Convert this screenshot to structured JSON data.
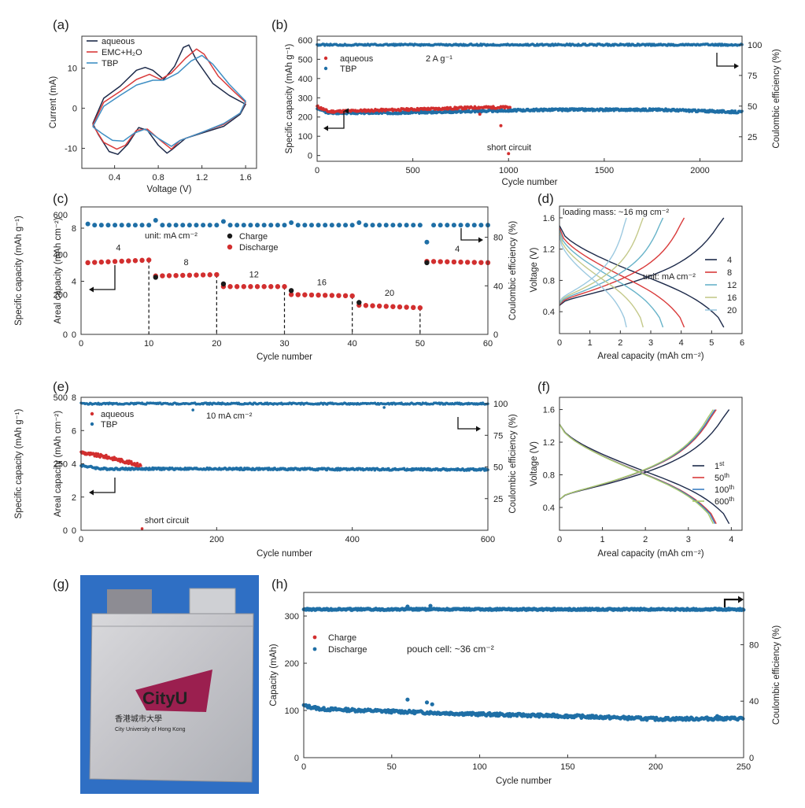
{
  "panel_labels": [
    "(a)",
    "(b)",
    "(c)",
    "(d)",
    "(e)",
    "(f)",
    "(g)",
    "(h)"
  ],
  "colors": {
    "aqueous": "#1d2a4a",
    "emc": "#d93a3a",
    "tbp": "#3f8fc4",
    "blue_dot": "#1f6fa6",
    "red_dot": "#d22f2f",
    "black_dot": "#1a1a1a",
    "d12": "#67b3c9",
    "d16": "#c4c98a",
    "d20": "#9cc9e0",
    "f100": "#3b7fc1",
    "f600": "#a8c76a",
    "pouch_bg": "#2f6fc4",
    "brand": "#9b1f4f"
  },
  "text": {
    "pouch": {
      "logo": "CityU",
      "chinese": "香港城市大學",
      "english": "City University of Hong Kong"
    }
  },
  "chart_data": [
    {
      "panel": "(a)",
      "type": "line",
      "xlabel": "Voltage (V)",
      "ylabel": "Current (mA)",
      "xlim": [
        0.1,
        1.7
      ],
      "ylim": [
        -15,
        18
      ],
      "xticks": [
        0.4,
        0.8,
        1.2,
        1.6
      ],
      "yticks": [
        -10,
        0,
        10
      ],
      "series": [
        {
          "name": "aqueous",
          "color_key": "aqueous",
          "points": [
            [
              0.2,
              -3.8
            ],
            [
              0.3,
              2.5
            ],
            [
              0.45,
              5.5
            ],
            [
              0.6,
              9.5
            ],
            [
              0.68,
              10.2
            ],
            [
              0.75,
              9.5
            ],
            [
              0.85,
              7.2
            ],
            [
              0.95,
              10.5
            ],
            [
              1.03,
              15.2
            ],
            [
              1.08,
              15.8
            ],
            [
              1.15,
              12
            ],
            [
              1.3,
              6.2
            ],
            [
              1.45,
              3.2
            ],
            [
              1.6,
              1.0
            ],
            [
              1.55,
              -1.5
            ],
            [
              1.4,
              -4.5
            ],
            [
              1.2,
              -6.2
            ],
            [
              1.05,
              -7.5
            ],
            [
              0.93,
              -10.2
            ],
            [
              0.88,
              -11.2
            ],
            [
              0.8,
              -9.2
            ],
            [
              0.7,
              -5.5
            ],
            [
              0.62,
              -4.8
            ],
            [
              0.52,
              -9
            ],
            [
              0.43,
              -11.5
            ],
            [
              0.35,
              -10.8
            ],
            [
              0.25,
              -6.5
            ],
            [
              0.2,
              -3.8
            ]
          ]
        },
        {
          "name": "EMC+H₂O",
          "color_key": "emc",
          "points": [
            [
              0.2,
              -4.2
            ],
            [
              0.3,
              1.5
            ],
            [
              0.45,
              4.2
            ],
            [
              0.6,
              7.2
            ],
            [
              0.72,
              8.5
            ],
            [
              0.82,
              7.2
            ],
            [
              0.92,
              8.8
            ],
            [
              1.05,
              12.5
            ],
            [
              1.15,
              14.8
            ],
            [
              1.22,
              13.5
            ],
            [
              1.35,
              8
            ],
            [
              1.5,
              4
            ],
            [
              1.6,
              1.5
            ],
            [
              1.55,
              -1.2
            ],
            [
              1.4,
              -4
            ],
            [
              1.2,
              -6
            ],
            [
              1.0,
              -8
            ],
            [
              0.92,
              -10.2
            ],
            [
              0.82,
              -8
            ],
            [
              0.7,
              -5.2
            ],
            [
              0.6,
              -5.5
            ],
            [
              0.5,
              -9.2
            ],
            [
              0.42,
              -10.2
            ],
            [
              0.3,
              -8.5
            ],
            [
              0.2,
              -4.2
            ]
          ]
        },
        {
          "name": "TBP",
          "color_key": "tbp",
          "points": [
            [
              0.2,
              -4.6
            ],
            [
              0.3,
              0.5
            ],
            [
              0.45,
              3.2
            ],
            [
              0.6,
              5.8
            ],
            [
              0.75,
              7
            ],
            [
              0.85,
              7
            ],
            [
              0.98,
              8.8
            ],
            [
              1.1,
              11.8
            ],
            [
              1.2,
              13.2
            ],
            [
              1.3,
              11
            ],
            [
              1.45,
              6
            ],
            [
              1.6,
              1.8
            ],
            [
              1.55,
              -1.2
            ],
            [
              1.4,
              -3.8
            ],
            [
              1.2,
              -6
            ],
            [
              1.0,
              -8
            ],
            [
              0.92,
              -9.5
            ],
            [
              0.8,
              -7.5
            ],
            [
              0.68,
              -5.2
            ],
            [
              0.58,
              -6.2
            ],
            [
              0.48,
              -8.2
            ],
            [
              0.38,
              -8
            ],
            [
              0.28,
              -6.2
            ],
            [
              0.2,
              -4.6
            ]
          ]
        }
      ]
    },
    {
      "panel": "(b)",
      "type": "scatter",
      "xlabel": "Cycle number",
      "ylabel": "Specific capacity (mAh g⁻¹)",
      "y2label": "Coulombic efficiency (%)",
      "xlim": [
        0,
        2220
      ],
      "ylim": [
        -30,
        620
      ],
      "y2lim": [
        5,
        107
      ],
      "xticks": [
        0,
        500,
        1000,
        1500,
        2000
      ],
      "yticks": [
        0,
        100,
        200,
        300,
        400,
        500,
        600
      ],
      "y2ticks": [
        25,
        50,
        75,
        100
      ],
      "rate_label": "2 A g⁻¹",
      "annotation": "short circuit",
      "series": [
        {
          "name": "aqueous",
          "axis": "left",
          "color_key": "red_dot",
          "segments": [
            [
              0,
              255
            ],
            [
              60,
              228
            ],
            [
              200,
              232
            ],
            [
              500,
              240
            ],
            [
              700,
              245
            ],
            [
              850,
              250
            ],
            [
              1010,
              250
            ]
          ],
          "outliers": [
            [
              850,
              215
            ],
            [
              960,
              155
            ],
            [
              1000,
              10
            ]
          ]
        },
        {
          "name": "TBP",
          "axis": "left",
          "color_key": "blue_dot",
          "segments": [
            [
              0,
              245
            ],
            [
              60,
              222
            ],
            [
              400,
              222
            ],
            [
              800,
              230
            ],
            [
              1200,
              238
            ],
            [
              1800,
              238
            ],
            [
              2220,
              225
            ]
          ]
        },
        {
          "name": "aqueous",
          "axis": "right",
          "ce": 100,
          "range": [
            0,
            1010
          ],
          "color_key": "red_dot"
        },
        {
          "name": "TBP",
          "axis": "right",
          "ce": 100,
          "range": [
            0,
            2220
          ],
          "color_key": "blue_dot"
        }
      ]
    },
    {
      "panel": "(c)",
      "type": "scatter",
      "xlabel": "Cycle number",
      "ylabel_outer": "Specific capacity (mAh g⁻¹)",
      "ylabel_inner": "Areal capacity (mAh cm⁻²)",
      "y2label": "Coulombic efficiency (%)",
      "xlim": [
        0,
        60
      ],
      "ylim": [
        0,
        9.6
      ],
      "y2lim": [
        0,
        105
      ],
      "xticks": [
        0,
        10,
        20,
        30,
        40,
        50,
        60
      ],
      "yticks": [
        0,
        4,
        8
      ],
      "y2ticks": [
        0,
        40,
        80
      ],
      "outer_ticks": [
        0,
        200,
        400,
        600
      ],
      "unit_label": "unit: mA cm⁻²",
      "series": [
        {
          "name": "Charge",
          "color_key": "black_dot",
          "values": [
            [
              11,
              4.3
            ],
            [
              21,
              3.8
            ],
            [
              31,
              3.3
            ],
            [
              41,
              2.4
            ],
            [
              51,
              5.4
            ]
          ]
        },
        {
          "name": "Discharge",
          "color_key": "red_dot",
          "blocks": [
            {
              "rate": "4",
              "x": [
                1,
                10
              ],
              "y": [
                5.4,
                5.6
              ]
            },
            {
              "rate": "8",
              "x": [
                11,
                20
              ],
              "y": [
                4.4,
                4.5
              ]
            },
            {
              "rate": "12",
              "x": [
                21,
                30
              ],
              "y": [
                3.6,
                3.6
              ]
            },
            {
              "rate": "16",
              "x": [
                31,
                40
              ],
              "y": [
                3.0,
                2.9
              ]
            },
            {
              "rate": "20",
              "x": [
                41,
                50
              ],
              "y": [
                2.2,
                2.0
              ]
            },
            {
              "rate": "4",
              "x": [
                51,
                60
              ],
              "y": [
                5.5,
                5.4
              ]
            }
          ]
        },
        {
          "name": "CE",
          "axis": "right",
          "color_key": "blue_dot",
          "values": [
            [
              1,
              91
            ],
            [
              11,
              94
            ],
            [
              21,
              93
            ],
            [
              31,
              92
            ],
            [
              41,
              92
            ],
            [
              51,
              76
            ]
          ],
          "base": 90
        }
      ],
      "dividers": [
        10,
        20,
        30,
        40,
        50
      ]
    },
    {
      "panel": "(d)",
      "type": "line",
      "xlabel": "Areal capacity (mAh cm⁻²)",
      "ylabel": "Voltage (V)",
      "xlim": [
        0,
        6
      ],
      "ylim": [
        0.12,
        1.75
      ],
      "xticks": [
        0,
        1,
        2,
        3,
        4,
        5,
        6
      ],
      "yticks": [
        0.4,
        0.8,
        1.2,
        1.6
      ],
      "note": "loading mass: ~16 mg cm⁻²",
      "unit_label": "unit: mA cm⁻²",
      "series": [
        {
          "name": "4",
          "color_key": "aqueous",
          "cmax": 5.4
        },
        {
          "name": "8",
          "color_key": "emc",
          "cmax": 4.1
        },
        {
          "name": "12",
          "color_key": "d12",
          "cmax": 3.4
        },
        {
          "name": "16",
          "color_key": "d16",
          "cmax": 2.75
        },
        {
          "name": "20",
          "color_key": "d20",
          "cmax": 2.2
        }
      ]
    },
    {
      "panel": "(e)",
      "type": "scatter",
      "xlabel": "Cycle number",
      "ylabel_outer": "Specific capacity (mAh g⁻¹)",
      "ylabel_inner": "Areal capacity (mAh cm⁻²)",
      "y2label": "Coulombic efficiency (%)",
      "xlim": [
        0,
        600
      ],
      "ylim": [
        0,
        8
      ],
      "y2lim": [
        0,
        105
      ],
      "xticks": [
        0,
        200,
        400,
        600
      ],
      "yticks": [
        0,
        2,
        4,
        6,
        8
      ],
      "y2ticks": [
        25,
        50,
        75,
        100
      ],
      "outer_ticks": [
        0,
        250,
        500
      ],
      "rate_label": "10 mA cm⁻²",
      "annotation": "short circuit",
      "series": [
        {
          "name": "aqueous",
          "color_key": "red_dot",
          "segments": [
            [
              0,
              4.7
            ],
            [
              10,
              4.6
            ],
            [
              40,
              4.4
            ],
            [
              88,
              3.9
            ]
          ],
          "outliers": [
            [
              90,
              0.1
            ]
          ]
        },
        {
          "name": "TBP",
          "color_key": "blue_dot",
          "segments": [
            [
              0,
              3.9
            ],
            [
              30,
              3.7
            ],
            [
              150,
              3.7
            ],
            [
              600,
              3.65
            ]
          ]
        },
        {
          "name": "CE",
          "axis": "right",
          "ce": 100,
          "color_key": "blue_dot",
          "outliers": [
            [
              165,
              95
            ],
            [
              447,
              97
            ]
          ]
        }
      ]
    },
    {
      "panel": "(f)",
      "type": "line",
      "xlabel": "Areal capacity (mAh cm⁻²)",
      "ylabel": "Voltage (V)",
      "xlim": [
        0,
        4.25
      ],
      "ylim": [
        0.12,
        1.75
      ],
      "xticks": [
        0,
        1,
        2,
        3,
        4
      ],
      "yticks": [
        0.4,
        0.8,
        1.2,
        1.6
      ],
      "series": [
        {
          "name": "1st",
          "label_base": "1",
          "label_sup": "st",
          "color_key": "aqueous",
          "cmax": 3.95
        },
        {
          "name": "50th",
          "label_base": "50",
          "label_sup": "th",
          "color_key": "emc",
          "cmax": 3.65
        },
        {
          "name": "100th",
          "label_base": "100",
          "label_sup": "th",
          "color_key": "f100",
          "cmax": 3.62
        },
        {
          "name": "600th",
          "label_base": "600",
          "label_sup": "th",
          "color_key": "f600",
          "cmax": 3.58
        }
      ]
    },
    {
      "panel": "(h)",
      "type": "scatter",
      "xlabel": "Cycle number",
      "ylabel": "Capacity (mAh)",
      "y2label": "Coulombic efficiency (%)",
      "xlim": [
        0,
        250
      ],
      "ylim": [
        0,
        350
      ],
      "y2lim": [
        0,
        117
      ],
      "xticks": [
        0,
        50,
        100,
        150,
        200,
        250
      ],
      "yticks": [
        0,
        100,
        200,
        300
      ],
      "y2ticks": [
        0,
        40,
        80
      ],
      "note": "pouch cell: ~36 cm⁻²",
      "series": [
        {
          "name": "Charge",
          "color_key": "red_dot",
          "values": []
        },
        {
          "name": "Discharge",
          "color_key": "blue_dot",
          "segments": [
            [
              0,
              110
            ],
            [
              10,
              103
            ],
            [
              50,
              98
            ],
            [
              100,
              92
            ],
            [
              150,
              88
            ],
            [
              200,
              82
            ],
            [
              250,
              83
            ]
          ],
          "outliers": [
            [
              59,
              123
            ],
            [
              70,
              117
            ],
            [
              73,
              113
            ],
            [
              235,
              88
            ]
          ]
        },
        {
          "name": "CE",
          "axis": "right",
          "ce": 105,
          "color_key": "blue_dot",
          "outliers": [
            [
              59,
              107
            ],
            [
              72,
              107.5
            ]
          ]
        }
      ]
    }
  ]
}
